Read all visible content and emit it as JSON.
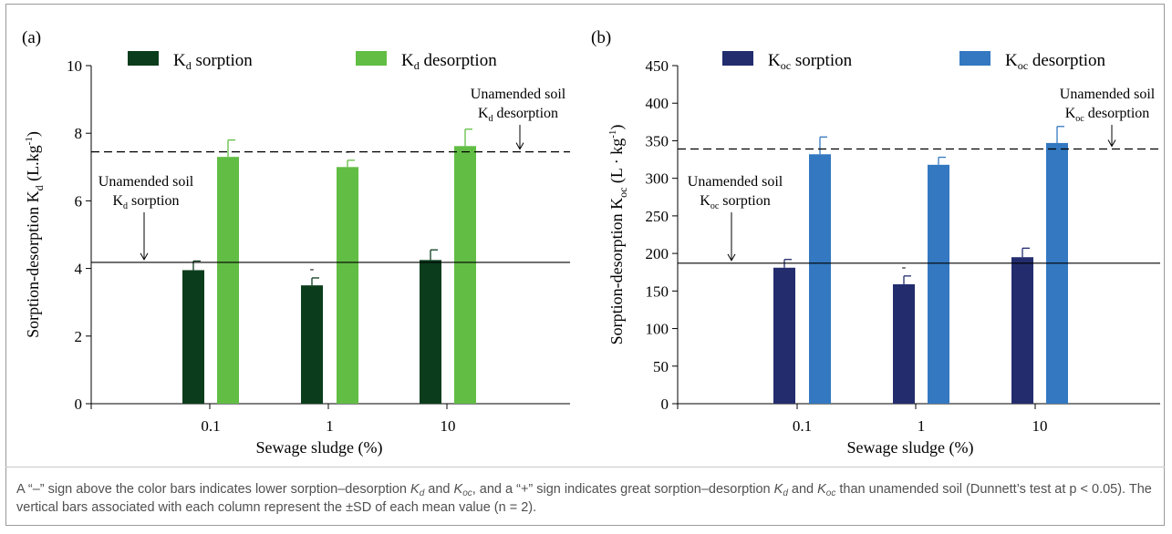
{
  "chart_data": [
    {
      "panel_label": "(a)",
      "type": "bar",
      "categories": [
        "0.1",
        "1",
        "10"
      ],
      "series": [
        {
          "name": "sorption",
          "color": "#0b3d1c",
          "values": [
            3.95,
            3.5,
            4.25
          ],
          "error": [
            0.27,
            0.22,
            0.3
          ],
          "sign": [
            "",
            "-",
            ""
          ]
        },
        {
          "name": "desorption",
          "color": "#62bd45",
          "values": [
            7.3,
            7.0,
            7.62
          ],
          "error": [
            0.5,
            0.2,
            0.5
          ],
          "sign": [
            "",
            "-",
            ""
          ]
        }
      ],
      "ylim": [
        0,
        10
      ],
      "yticks": [
        "0",
        "2",
        "4",
        "6",
        "8",
        "10"
      ],
      "ylabel": "Sorption-desorption",
      "xlabel": "Sewage sludge (%)",
      "legend_prefix": "K",
      "legend_sub": "d",
      "legend_placement": "top",
      "reference_lines": {
        "sorption": {
          "value": 4.18,
          "style": "solid",
          "label1": "Unamended soil",
          "label2": "sorption"
        },
        "desorption": {
          "value": 7.45,
          "style": "dashed",
          "label1": "Unamended soil",
          "label2": "desorption"
        }
      },
      "ylabel_unit_text": "(L.kg",
      "ylabel_unit_sup": "-1",
      "ylabel_unit_close": ")"
    },
    {
      "panel_label": "(b)",
      "type": "bar",
      "categories": [
        "0.1",
        "1",
        "10"
      ],
      "series": [
        {
          "name": "sorption",
          "color": "#232d6e",
          "values": [
            181,
            159,
            195
          ],
          "error": [
            11,
            11,
            12
          ],
          "sign": [
            "",
            "-",
            ""
          ]
        },
        {
          "name": "desorption",
          "color": "#3378c1",
          "values": [
            332,
            318,
            347
          ],
          "error": [
            23,
            10,
            22
          ],
          "sign": [
            "",
            "-",
            ""
          ]
        }
      ],
      "ylim": [
        0,
        450
      ],
      "yticks": [
        "0",
        "50",
        "100",
        "150",
        "200",
        "250",
        "300",
        "350",
        "400",
        "450"
      ],
      "ylabel": "Sorption-desorption",
      "xlabel": "Sewage sludge (%)",
      "legend_prefix": "K",
      "legend_sub": "oc",
      "legend_placement": "top",
      "reference_lines": {
        "sorption": {
          "value": 187,
          "style": "solid",
          "label1": "Unamended soil",
          "label2": "sorption"
        },
        "desorption": {
          "value": 339,
          "style": "dashed",
          "label1": "Unamended soil",
          "label2": "desorption"
        }
      },
      "ylabel_unit_text": "(L · kg",
      "ylabel_unit_sup": "-1",
      "ylabel_unit_close": ")"
    }
  ],
  "caption": {
    "t1": "A “–” sign above the color bars indicates lower sorption–desorption ",
    "t2": " and ",
    "t3": ", and a “+” sign indicates great sorption–desorption ",
    "t4": " and ",
    "t5": " than unamended soil (Dunnett’s test at p < 0.05). The vertical bars associated with each column represent the ±SD of each mean value (n = 2).",
    "k": "K",
    "d": "d",
    "oc": "oc"
  }
}
